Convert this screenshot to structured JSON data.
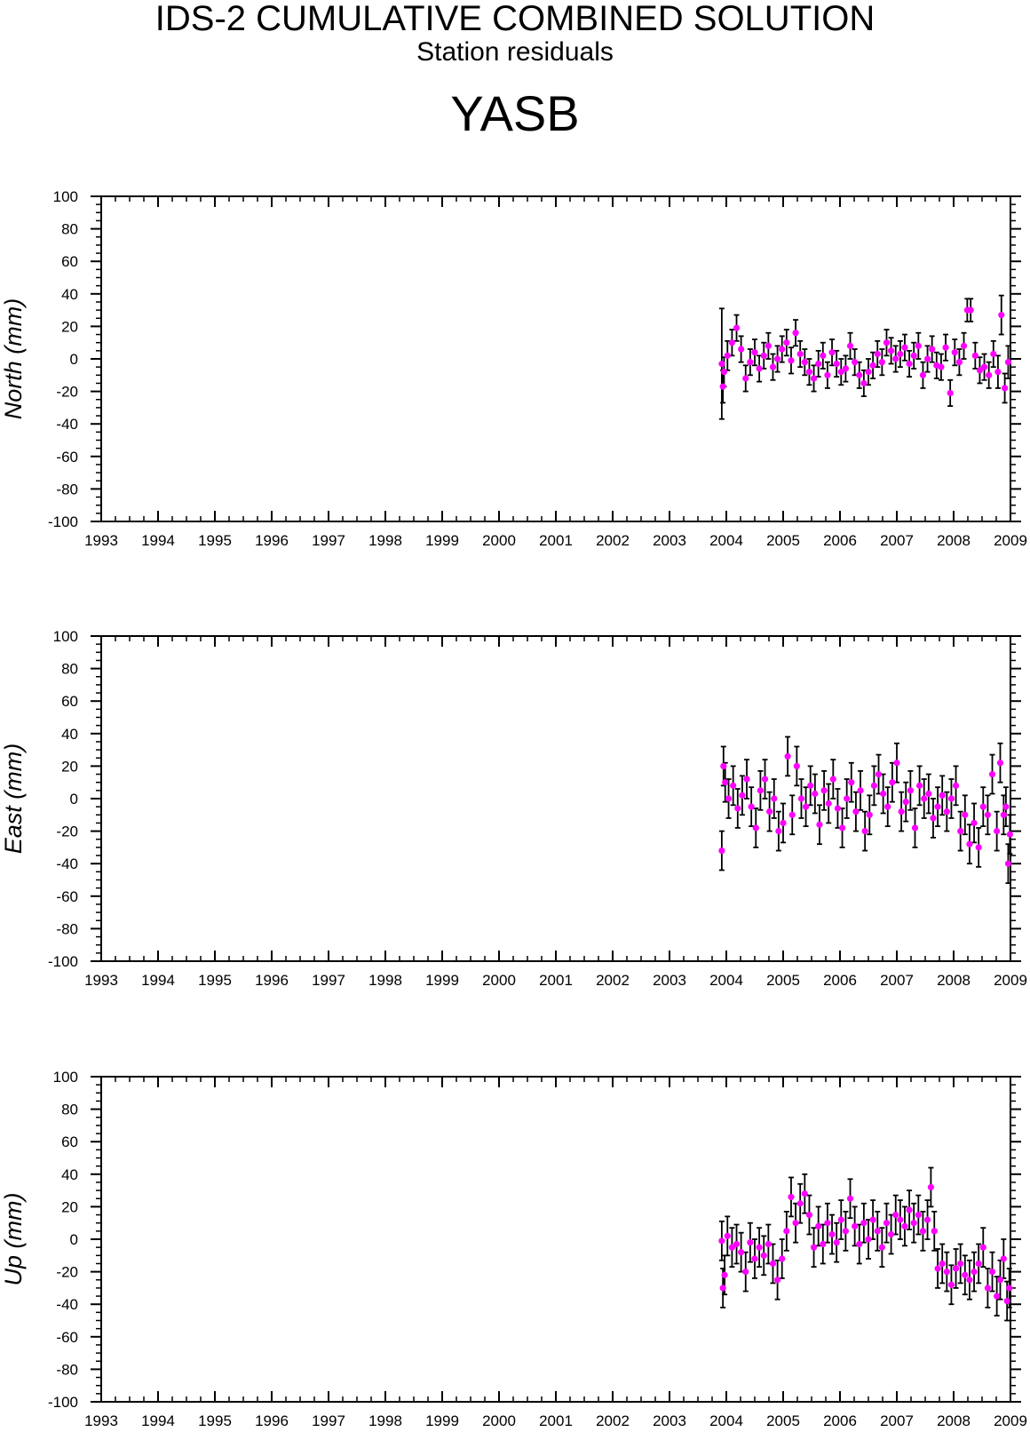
{
  "header": {
    "title": "IDS-2 CUMULATIVE COMBINED SOLUTION",
    "subtitle": "Station residuals",
    "station": "YASB"
  },
  "colors": {
    "marker": "#ff00ff",
    "errorbar": "#000000",
    "axes": "#000000"
  },
  "chart_data": [
    {
      "type": "scatter",
      "title": "",
      "xlabel": "",
      "ylabel": "North (mm)",
      "xlim": [
        1993,
        2009
      ],
      "ylim": [
        -100,
        100
      ],
      "x_ticks": [
        "1993",
        "1994",
        "1995",
        "1996",
        "1997",
        "1998",
        "1999",
        "2000",
        "2001",
        "2002",
        "2003",
        "2004",
        "2005",
        "2006",
        "2007",
        "2008",
        "2009"
      ],
      "y_ticks": [
        "100",
        "80",
        "60",
        "40",
        "20",
        "0",
        "-20",
        "-40",
        "-60",
        "-80",
        "-100"
      ],
      "grid": false,
      "error_bars": true,
      "series": [
        {
          "x": [
            2003.92,
            2003.94,
            2003.96,
            2004.02,
            2004.1,
            2004.18,
            2004.26,
            2004.34,
            2004.42,
            2004.5,
            2004.58,
            2004.66,
            2004.74,
            2004.82,
            2004.9,
            2004.98,
            2005.06,
            2005.14,
            2005.22,
            2005.3,
            2005.38,
            2005.46,
            2005.54,
            2005.62,
            2005.7,
            2005.78,
            2005.86,
            2005.94,
            2006.02,
            2006.1,
            2006.18,
            2006.26,
            2006.34,
            2006.42,
            2006.5,
            2006.58,
            2006.66,
            2006.74,
            2006.82,
            2006.9,
            2006.98,
            2007.06,
            2007.14,
            2007.22,
            2007.3,
            2007.38,
            2007.46,
            2007.54,
            2007.62,
            2007.7,
            2007.78,
            2007.86,
            2007.94,
            2008.02,
            2008.1,
            2008.18,
            2008.24,
            2008.3,
            2008.38,
            2008.46,
            2008.54,
            2008.62,
            2008.7,
            2008.78,
            2008.84,
            2008.9,
            2008.96
          ],
          "y": [
            -3,
            -17,
            -8,
            2,
            10,
            19,
            6,
            -12,
            -2,
            4,
            -6,
            2,
            8,
            -5,
            0,
            6,
            10,
            -1,
            16,
            3,
            -2,
            -8,
            -12,
            -3,
            2,
            -10,
            4,
            -3,
            -8,
            -6,
            8,
            -2,
            -10,
            -15,
            -8,
            -4,
            3,
            -2,
            10,
            5,
            0,
            3,
            7,
            -3,
            2,
            8,
            -10,
            0,
            6,
            -4,
            -5,
            7,
            -21,
            4,
            -2,
            8,
            30,
            30,
            2,
            -7,
            -5,
            -10,
            3,
            -8,
            27,
            -18,
            -2
          ],
          "err": [
            34,
            10,
            9,
            9,
            8,
            8,
            8,
            8,
            8,
            8,
            8,
            8,
            8,
            8,
            8,
            8,
            8,
            8,
            8,
            8,
            8,
            8,
            8,
            8,
            8,
            8,
            8,
            8,
            8,
            8,
            8,
            8,
            8,
            8,
            8,
            8,
            8,
            8,
            8,
            8,
            8,
            8,
            8,
            8,
            8,
            8,
            8,
            8,
            8,
            8,
            8,
            8,
            8,
            8,
            8,
            8,
            7,
            7,
            8,
            8,
            8,
            8,
            8,
            10,
            12,
            9,
            10
          ]
        }
      ]
    },
    {
      "type": "scatter",
      "title": "",
      "xlabel": "",
      "ylabel": "East (mm)",
      "xlim": [
        1993,
        2009
      ],
      "ylim": [
        -100,
        100
      ],
      "x_ticks": [
        "1993",
        "1994",
        "1995",
        "1996",
        "1997",
        "1998",
        "1999",
        "2000",
        "2001",
        "2002",
        "2003",
        "2004",
        "2005",
        "2006",
        "2007",
        "2008",
        "2009"
      ],
      "y_ticks": [
        "100",
        "80",
        "60",
        "40",
        "20",
        "0",
        "-20",
        "-40",
        "-60",
        "-80",
        "-100"
      ],
      "grid": false,
      "error_bars": true,
      "series": [
        {
          "x": [
            2003.92,
            2003.95,
            2003.98,
            2004.04,
            2004.12,
            2004.2,
            2004.28,
            2004.36,
            2004.44,
            2004.52,
            2004.6,
            2004.68,
            2004.76,
            2004.84,
            2004.92,
            2005.0,
            2005.08,
            2005.16,
            2005.24,
            2005.32,
            2005.4,
            2005.48,
            2005.56,
            2005.64,
            2005.72,
            2005.8,
            2005.88,
            2005.96,
            2006.04,
            2006.12,
            2006.2,
            2006.28,
            2006.36,
            2006.44,
            2006.52,
            2006.6,
            2006.68,
            2006.76,
            2006.84,
            2006.92,
            2007.0,
            2007.08,
            2007.16,
            2007.24,
            2007.32,
            2007.4,
            2007.48,
            2007.56,
            2007.64,
            2007.72,
            2007.8,
            2007.88,
            2007.96,
            2008.04,
            2008.12,
            2008.2,
            2008.28,
            2008.36,
            2008.44,
            2008.52,
            2008.6,
            2008.68,
            2008.76,
            2008.82,
            2008.88,
            2008.92,
            2008.96,
            2008.99
          ],
          "y": [
            -32,
            20,
            10,
            0,
            8,
            -6,
            2,
            12,
            -5,
            -18,
            5,
            12,
            -8,
            0,
            -20,
            -15,
            26,
            -10,
            20,
            0,
            -5,
            8,
            3,
            -16,
            5,
            -3,
            12,
            -6,
            -18,
            0,
            10,
            -8,
            5,
            -20,
            -10,
            8,
            15,
            3,
            -5,
            10,
            22,
            -8,
            -2,
            5,
            -18,
            8,
            0,
            3,
            -12,
            -5,
            2,
            -8,
            0,
            8,
            -20,
            -10,
            -28,
            -15,
            -30,
            -5,
            -10,
            15,
            -20,
            22,
            -10,
            -5,
            -40,
            -22
          ]
        }
      ]
    },
    {
      "type": "scatter",
      "title": "",
      "xlabel": "",
      "ylabel": "Up (mm)",
      "xlim": [
        1993,
        2009
      ],
      "ylim": [
        -100,
        100
      ],
      "x_ticks": [
        "1993",
        "1994",
        "1995",
        "1996",
        "1997",
        "1998",
        "1999",
        "2000",
        "2001",
        "2002",
        "2003",
        "2004",
        "2005",
        "2006",
        "2007",
        "2008",
        "2009"
      ],
      "y_ticks": [
        "100",
        "80",
        "60",
        "40",
        "20",
        "0",
        "-20",
        "-40",
        "-60",
        "-80",
        "-100"
      ],
      "grid": false,
      "error_bars": true,
      "series": [
        {
          "x": [
            2003.92,
            2003.94,
            2003.97,
            2004.02,
            2004.1,
            2004.18,
            2004.26,
            2004.34,
            2004.42,
            2004.5,
            2004.58,
            2004.66,
            2004.74,
            2004.82,
            2004.9,
            2004.98,
            2005.06,
            2005.14,
            2005.22,
            2005.3,
            2005.38,
            2005.46,
            2005.54,
            2005.62,
            2005.7,
            2005.78,
            2005.86,
            2005.94,
            2006.02,
            2006.1,
            2006.18,
            2006.26,
            2006.34,
            2006.42,
            2006.5,
            2006.58,
            2006.66,
            2006.74,
            2006.82,
            2006.9,
            2006.98,
            2007.06,
            2007.14,
            2007.22,
            2007.3,
            2007.38,
            2007.46,
            2007.54,
            2007.6,
            2007.66,
            2007.72,
            2007.8,
            2007.88,
            2007.96,
            2008.04,
            2008.12,
            2008.2,
            2008.28,
            2008.36,
            2008.44,
            2008.52,
            2008.6,
            2008.68,
            2008.76,
            2008.82,
            2008.88,
            2008.94,
            2008.98
          ],
          "y": [
            -1,
            -30,
            -22,
            2,
            -5,
            -3,
            -8,
            -20,
            -2,
            -12,
            -5,
            -10,
            -3,
            -15,
            -25,
            -12,
            5,
            26,
            10,
            22,
            28,
            15,
            -5,
            8,
            -3,
            10,
            3,
            -2,
            12,
            5,
            25,
            8,
            -3,
            10,
            0,
            12,
            5,
            -5,
            10,
            3,
            15,
            12,
            8,
            18,
            10,
            15,
            5,
            12,
            32,
            5,
            -18,
            -15,
            -20,
            -28,
            -18,
            -15,
            -22,
            -25,
            -20,
            -15,
            -5,
            -30,
            -20,
            -35,
            -25,
            -12,
            -38,
            -30
          ]
        }
      ]
    }
  ]
}
